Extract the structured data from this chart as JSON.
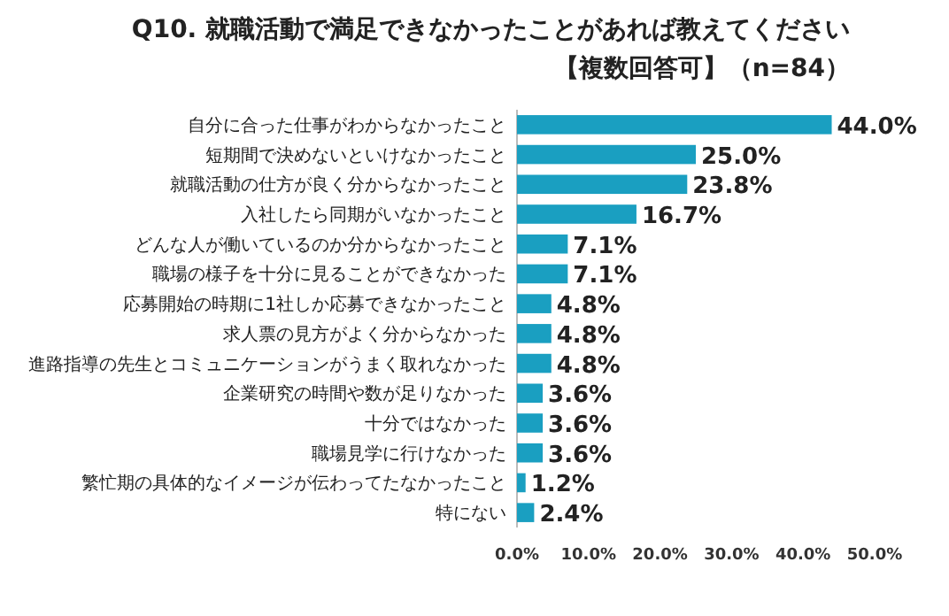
{
  "chart_data": {
    "type": "bar",
    "orientation": "horizontal",
    "title": "Q10. 就職活動で満足できなかったことがあれば教えてください【複数回答可】（n=84）",
    "categories": [
      "自分に合った仕事がわからなかったこと",
      "短期間で決めないといけなかったこと",
      "就職活動の仕方が良く分からなかったこと",
      "入社したら同期がいなかったこと",
      "どんな人が働いているのか分からなかったこと",
      "職場の様子を十分に見ることができなかった",
      "応募開始の時期に1社しか応募できなかったこと",
      "求人票の見方がよく分からなかった",
      "進路指導の先生とコミュニケーションがうまく取れなかった",
      "企業研究の時間や数が足りなかった",
      "十分ではなかった",
      "職場見学に行けなかった",
      "繁忙期の具体的なイメージが伝わってたなかったこと",
      "特にない"
    ],
    "values": [
      44.0,
      25.0,
      23.8,
      16.7,
      7.1,
      7.1,
      4.8,
      4.8,
      4.8,
      3.6,
      3.6,
      3.6,
      1.2,
      2.4
    ],
    "value_labels": [
      "44.0%",
      "25.0%",
      "23.8%",
      "16.7%",
      "7.1%",
      "7.1%",
      "4.8%",
      "4.8%",
      "4.8%",
      "3.6%",
      "3.6%",
      "3.6%",
      "1.2%",
      "2.4%"
    ],
    "color": "#1a9fc1",
    "xlim": [
      0,
      50
    ],
    "xticks": [
      {
        "value": 0,
        "label": "0.0%"
      },
      {
        "value": 10,
        "label": "10.0%"
      },
      {
        "value": 20,
        "label": "20.0%"
      },
      {
        "value": 30,
        "label": "30.0%"
      },
      {
        "value": 40,
        "label": "40.0%"
      },
      {
        "value": 50,
        "label": "50.0%"
      }
    ],
    "grid": false
  }
}
